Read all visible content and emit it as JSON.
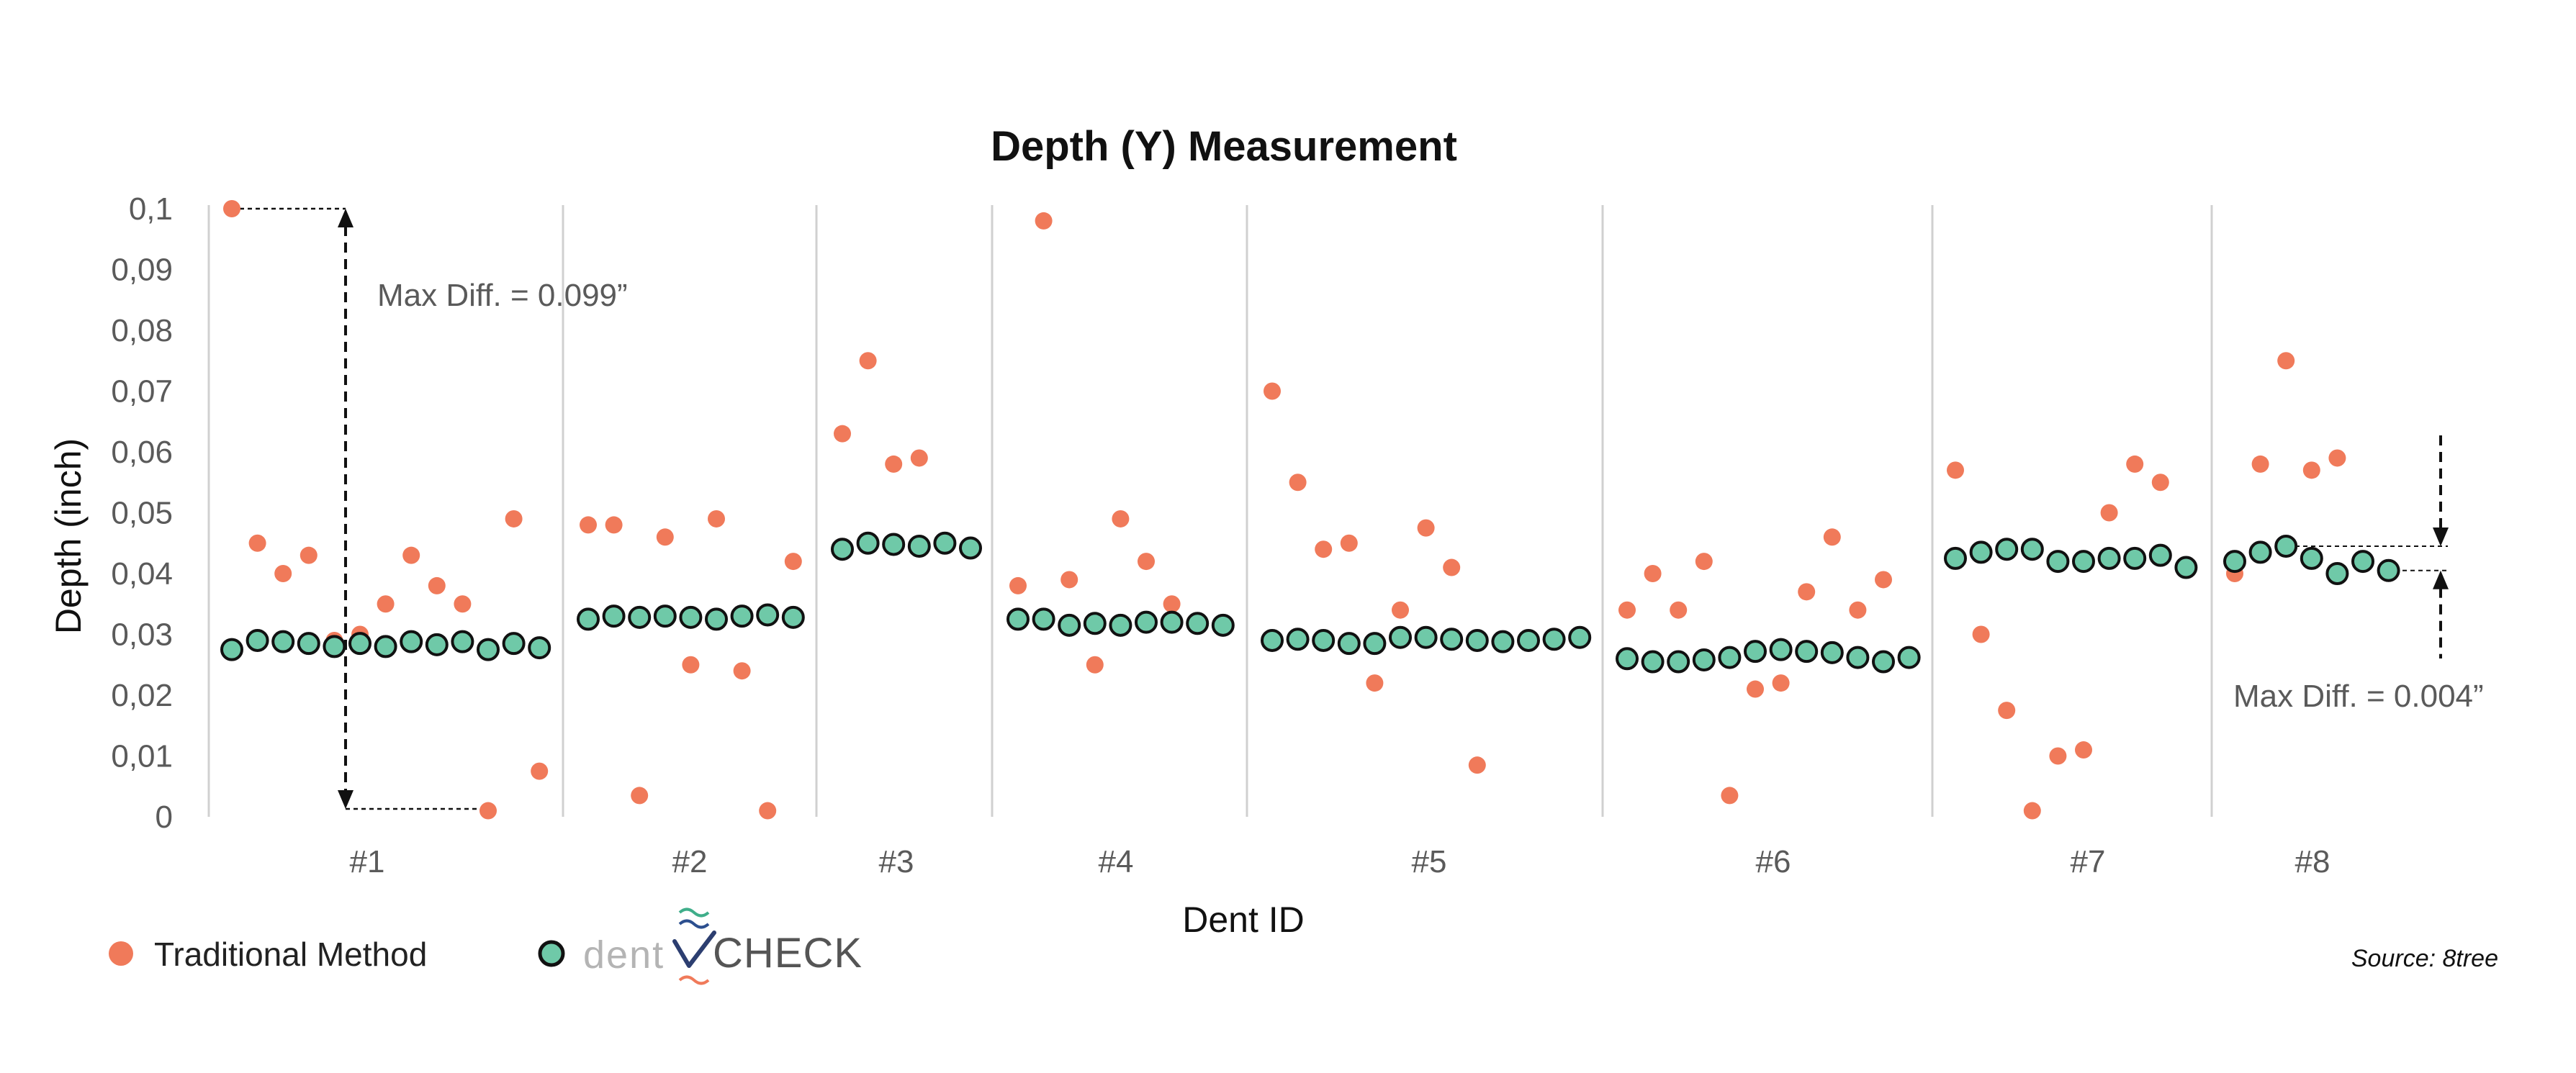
{
  "chart_data": {
    "type": "scatter",
    "title": "Depth (Y) Measurement",
    "xlabel": "Dent ID",
    "ylabel": "Depth (inch)",
    "ylim": [
      0,
      0.1
    ],
    "yticks": [
      "0",
      "0,01",
      "0,02",
      "0,03",
      "0,04",
      "0,05",
      "0,06",
      "0,07",
      "0,08",
      "0,09",
      "0,1"
    ],
    "grid": false,
    "legend_position": "bottom-left",
    "source": "Source: 8tree",
    "colors": {
      "traditional": "#f07a5a",
      "dentcheck": "#6fc9a8",
      "dentcheck_stroke": "#111111",
      "separator": "#d0d0d0"
    },
    "categories": [
      "#1",
      "#2",
      "#3",
      "#4",
      "#5",
      "#6",
      "#7",
      "#8"
    ],
    "series": [
      {
        "name": "Traditional Method",
        "groups": [
          [
            0.1,
            0.045,
            0.04,
            0.043,
            0.029,
            0.03,
            0.035,
            0.043,
            0.038,
            0.035,
            0.001,
            0.049,
            0.0075
          ],
          [
            0.048,
            0.048,
            0.0035,
            0.046,
            0.025,
            0.049,
            0.024,
            0.001,
            0.042
          ],
          [
            0.063,
            0.075,
            0.058,
            0.059
          ],
          [
            0.038,
            0.098,
            0.039,
            0.025,
            0.049,
            0.042,
            0.035
          ],
          [
            0.07,
            0.055,
            0.044,
            0.045,
            0.022,
            0.034,
            0.0475,
            0.041,
            0.0085
          ],
          [
            0.034,
            0.04,
            0.034,
            0.042,
            0.0035,
            0.021,
            0.022,
            0.037,
            0.046,
            0.034,
            0.039
          ],
          [
            0.057,
            0.03,
            0.0175,
            0.001,
            0.01,
            0.011,
            0.05,
            0.058,
            0.055
          ],
          [
            0.04,
            0.058,
            0.075,
            0.057,
            0.059
          ]
        ]
      },
      {
        "name": "dentCHECK",
        "groups": [
          [
            0.0275,
            0.029,
            0.0288,
            0.0285,
            0.028,
            0.0285,
            0.028,
            0.0288,
            0.0283,
            0.0288,
            0.0275,
            0.0285,
            0.0278
          ],
          [
            0.0325,
            0.033,
            0.0328,
            0.033,
            0.0328,
            0.0325,
            0.033,
            0.0332,
            0.0328
          ],
          [
            0.044,
            0.045,
            0.0448,
            0.0445,
            0.045,
            0.0442
          ],
          [
            0.0325,
            0.0325,
            0.0315,
            0.0318,
            0.0315,
            0.032,
            0.032,
            0.0318,
            0.0315
          ],
          [
            0.029,
            0.0292,
            0.029,
            0.0285,
            0.0285,
            0.0295,
            0.0295,
            0.0292,
            0.029,
            0.0288,
            0.029,
            0.0292,
            0.0295
          ],
          [
            0.026,
            0.0255,
            0.0255,
            0.0258,
            0.0262,
            0.0272,
            0.0275,
            0.0272,
            0.027,
            0.0262,
            0.0255,
            0.0262
          ],
          [
            0.0425,
            0.0435,
            0.044,
            0.044,
            0.042,
            0.042,
            0.0425,
            0.0425,
            0.043,
            0.041
          ],
          [
            0.042,
            0.0435,
            0.0445,
            0.0425,
            0.04,
            0.042,
            0.0405
          ]
        ]
      }
    ],
    "annotations": [
      {
        "text": "Max Diff. = 0.099”",
        "category": "#1",
        "from": 0.001,
        "to": 0.1
      },
      {
        "text": "Max Diff. = 0.004”",
        "category": "#8",
        "from": 0.0405,
        "to": 0.0445
      }
    ]
  },
  "legend": {
    "traditional_label": "Traditional Method",
    "brand_dent": "dent",
    "brand_check": "CHECK"
  }
}
